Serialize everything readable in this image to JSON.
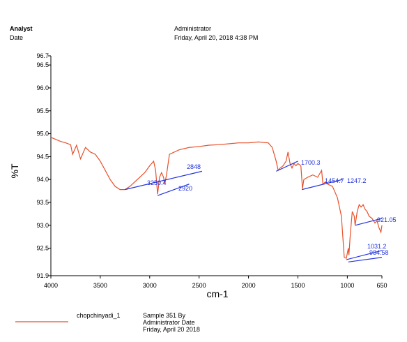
{
  "header": {
    "analyst_label": "Analyst",
    "date_label": "Date",
    "analyst": "Administrator",
    "date": "Friday, April 20, 2018 4:38 PM"
  },
  "chart_data": {
    "type": "line",
    "xlabel": "cm-1",
    "ylabel": "%T",
    "xlim": [
      4000,
      650
    ],
    "ylim": [
      91.9,
      96.7
    ],
    "xticks": [
      4000,
      3500,
      3000,
      2500,
      2000,
      1500,
      1000,
      650
    ],
    "yticks": [
      91.9,
      92.5,
      {
        "value": 93,
        "label": "93.0"
      },
      93.5,
      {
        "value": 94,
        "label": "94.0"
      },
      94.5,
      {
        "value": 95,
        "label": "95.0"
      },
      95.5,
      {
        "value": 96,
        "label": "96.0"
      },
      96.5,
      96.7
    ],
    "series": [
      {
        "name": "chopchinyadi_1",
        "color": "#e8502a",
        "x": [
          4000,
          3900,
          3850,
          3800,
          3780,
          3740,
          3700,
          3650,
          3600,
          3550,
          3500,
          3450,
          3400,
          3350,
          3300,
          3250,
          3200,
          3150,
          3100,
          3050,
          3000,
          2960,
          2940,
          2920,
          2900,
          2880,
          2860,
          2848,
          2830,
          2800,
          2700,
          2600,
          2500,
          2400,
          2300,
          2200,
          2100,
          2000,
          1900,
          1800,
          1760,
          1720,
          1700,
          1680,
          1650,
          1620,
          1600,
          1580,
          1560,
          1540,
          1520,
          1500,
          1470,
          1454,
          1440,
          1400,
          1350,
          1300,
          1260,
          1247,
          1220,
          1200,
          1150,
          1100,
          1060,
          1031,
          1010,
          990,
          984,
          970,
          950,
          930,
          921,
          900,
          880,
          860,
          840,
          820,
          800,
          780,
          750,
          720,
          700,
          680,
          660,
          650
        ],
        "values": [
          94.92,
          94.83,
          94.8,
          94.76,
          94.55,
          94.75,
          94.45,
          94.7,
          94.6,
          94.55,
          94.4,
          94.2,
          94.0,
          93.85,
          93.78,
          93.78,
          93.85,
          93.95,
          94.05,
          94.15,
          94.3,
          94.4,
          94.2,
          93.68,
          94.05,
          94.15,
          94.05,
          93.9,
          94.1,
          94.55,
          94.65,
          94.7,
          94.72,
          94.75,
          94.76,
          94.78,
          94.8,
          94.8,
          94.82,
          94.8,
          94.7,
          94.4,
          94.2,
          94.25,
          94.3,
          94.4,
          94.6,
          94.35,
          94.25,
          94.35,
          94.3,
          94.35,
          94.3,
          93.8,
          94.0,
          94.05,
          94.1,
          94.05,
          94.2,
          93.9,
          93.95,
          93.9,
          93.85,
          93.6,
          93.2,
          92.3,
          92.28,
          92.5,
          92.35,
          92.8,
          93.3,
          93.2,
          93.0,
          93.3,
          93.45,
          93.4,
          93.45,
          93.35,
          93.3,
          93.2,
          93.15,
          93.05,
          93.1,
          92.95,
          92.85,
          93.0
        ]
      }
    ],
    "annotation_color": "#2233dd",
    "annotations": [
      {
        "text": 3250.4,
        "line": [
          [
            3250,
            93.78
          ],
          [
            2470,
            94.18
          ]
        ]
      },
      {
        "text": 2848
      },
      {
        "text": 2920,
        "line": [
          [
            2920,
            93.65
          ],
          [
            2600,
            93.9
          ]
        ]
      },
      {
        "text": 1700.3,
        "line": [
          [
            1720,
            94.18
          ],
          [
            1500,
            94.4
          ]
        ]
      },
      {
        "text": 1454.7,
        "line": [
          [
            1460,
            93.78
          ],
          [
            1050,
            94.0
          ]
        ]
      },
      {
        "text": 1247.2
      },
      {
        "text": 921.05,
        "line": [
          [
            920,
            93.0
          ],
          [
            650,
            93.15
          ]
        ]
      },
      {
        "text": 1031.2,
        "line": [
          [
            1010,
            92.25
          ],
          [
            650,
            92.45
          ]
        ]
      },
      {
        "text": 984.58,
        "line": [
          [
            990,
            92.2
          ],
          [
            650,
            92.3
          ]
        ]
      }
    ],
    "legend_note": [
      "Sample 351 By",
      "Administrator Date",
      "Friday, April 20 2018"
    ]
  }
}
